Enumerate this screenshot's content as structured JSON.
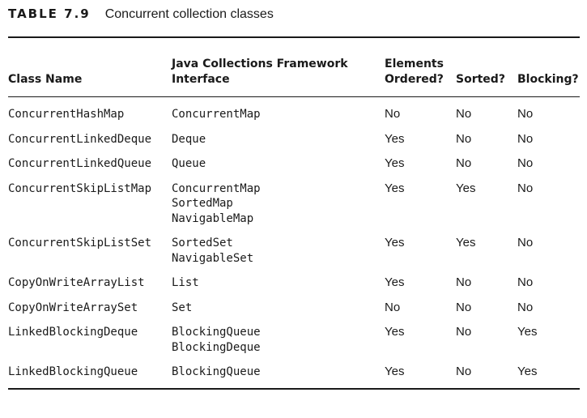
{
  "caption": {
    "label": "TABLE 7.9",
    "title": "Concurrent collection classes"
  },
  "columns": [
    "Class Name",
    "Java Collections Framework Interface",
    "Elements Ordered?",
    "Sorted?",
    "Blocking?"
  ],
  "rows": [
    {
      "class_name": "ConcurrentHashMap",
      "interfaces": [
        "ConcurrentMap"
      ],
      "ordered": "No",
      "sorted": "No",
      "blocking": "No"
    },
    {
      "class_name": "ConcurrentLinkedDeque",
      "interfaces": [
        "Deque"
      ],
      "ordered": "Yes",
      "sorted": "No",
      "blocking": "No"
    },
    {
      "class_name": "ConcurrentLinkedQueue",
      "interfaces": [
        "Queue"
      ],
      "ordered": "Yes",
      "sorted": "No",
      "blocking": "No"
    },
    {
      "class_name": "ConcurrentSkipListMap",
      "interfaces": [
        "ConcurrentMap",
        "SortedMap",
        "NavigableMap"
      ],
      "ordered": "Yes",
      "sorted": "Yes",
      "blocking": "No"
    },
    {
      "class_name": "ConcurrentSkipListSet",
      "interfaces": [
        "SortedSet",
        "NavigableSet"
      ],
      "ordered": "Yes",
      "sorted": "Yes",
      "blocking": "No"
    },
    {
      "class_name": "CopyOnWriteArrayList",
      "interfaces": [
        "List"
      ],
      "ordered": "Yes",
      "sorted": "No",
      "blocking": "No"
    },
    {
      "class_name": "CopyOnWriteArraySet",
      "interfaces": [
        "Set"
      ],
      "ordered": "No",
      "sorted": "No",
      "blocking": "No"
    },
    {
      "class_name": "LinkedBlockingDeque",
      "interfaces": [
        "BlockingQueue",
        "BlockingDeque"
      ],
      "ordered": "Yes",
      "sorted": "No",
      "blocking": "Yes"
    },
    {
      "class_name": "LinkedBlockingQueue",
      "interfaces": [
        "BlockingQueue"
      ],
      "ordered": "Yes",
      "sorted": "No",
      "blocking": "Yes"
    }
  ]
}
